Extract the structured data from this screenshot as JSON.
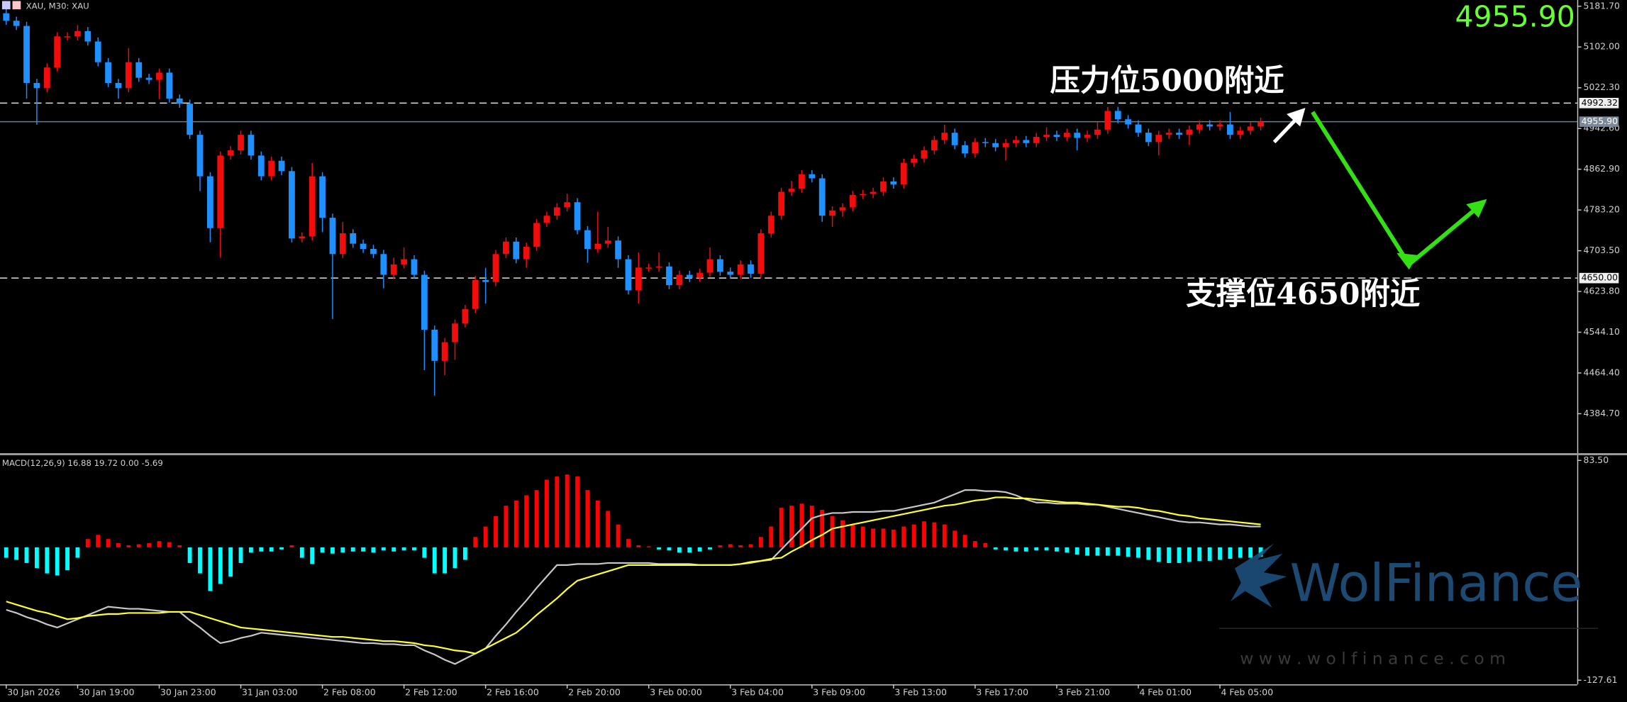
{
  "chart_data": [
    {
      "type": "candlestick",
      "title": "XAU, M30: XAU",
      "categories": [
        "30 Jan 2026",
        null,
        null,
        null,
        null,
        null,
        null,
        "30 Jan 19:00",
        null,
        null,
        null,
        null,
        null,
        null,
        null,
        "30 Jan 23:00",
        null,
        null,
        null,
        null,
        null,
        null,
        null,
        "31 Jan 03:00",
        null,
        null,
        null,
        null,
        null,
        null,
        null,
        "2 Feb 08:00",
        null,
        null,
        null,
        null,
        null,
        null,
        null,
        "2 Feb 12:00",
        null,
        null,
        null,
        null,
        null,
        null,
        null,
        "2 Feb 16:00",
        null,
        null,
        null,
        null,
        null,
        null,
        null,
        "2 Feb 20:00",
        null,
        null,
        null,
        null,
        null,
        null,
        null,
        "3 Feb 00:00",
        null,
        null,
        null,
        null,
        null,
        null,
        null,
        "3 Feb 04:00",
        null,
        null,
        null,
        null,
        null,
        null,
        null,
        "3 Feb 09:00",
        null,
        null,
        null,
        null,
        null,
        null,
        null,
        "3 Feb 13:00",
        null,
        null,
        null,
        null,
        null,
        null,
        null,
        "3 Feb 17:00",
        null,
        null,
        null,
        null,
        null,
        null,
        null,
        "3 Feb 21:00",
        null,
        null,
        null,
        null,
        null,
        null,
        null,
        "4 Feb 01:00",
        null,
        null,
        null,
        null,
        null,
        null,
        null,
        "4 Feb 05:00",
        null,
        null,
        null,
        null
      ],
      "open": [
        5168.0,
        5153.3,
        5143.2,
        5031.6,
        5021.5,
        5062.0,
        5122.9,
        5122.9,
        5133.0,
        5112.7,
        5072.2,
        5031.6,
        5021.5,
        5072.2,
        5041.8,
        5037.7,
        5051.9,
        5001.2,
        4991.1,
        4930.2,
        4849.1,
        4747.7,
        4889.7,
        4899.8,
        4930.2,
        4889.7,
        4849.1,
        4879.5,
        4859.2,
        4727.4,
        4731.5,
        4849.1,
        4768.0,
        4697.0,
        4737.6,
        4717.3,
        4707.1,
        4697.0,
        4656.4,
        4676.7,
        4686.9,
        4656.4,
        4549.0,
        4488.1,
        4524.6,
        4561.1,
        4589.5,
        4646.3,
        4642.3,
        4697.0,
        4721.3,
        4686.9,
        4711.2,
        4757.8,
        4772.0,
        4788.3,
        4798.4,
        4743.7,
        4707.1,
        4717.3,
        4723.4,
        4686.9,
        4626.0,
        4670.6,
        4670.6,
        4672.7,
        4636.2,
        4656.4,
        4650.4,
        4660.5,
        4686.9,
        4662.5,
        4656.4,
        4676.7,
        4658.5,
        4737.6,
        4772.0,
        4818.7,
        4824.8,
        4853.2,
        4845.1,
        4772.0,
        4782.2,
        4788.3,
        4812.6,
        4814.6,
        4818.7,
        4839.0,
        4832.9,
        4875.5,
        4883.6,
        4899.8,
        4920.1,
        4934.3,
        4909.9,
        4893.7,
        4916.0,
        4914.0,
        4905.9,
        4914.0,
        4920.1,
        4914.0,
        4926.2,
        4930.2,
        4926.2,
        4934.3,
        4924.1,
        4930.2,
        4940.4,
        4976.9,
        4960.6,
        4950.5,
        4934.3,
        4916.0,
        4930.2,
        4934.3,
        4930.2,
        4940.4,
        4950.5,
        4946.5,
        4950.5,
        4930.2,
        4938.3,
        4946.5
      ],
      "high": [
        5176.0,
        5161.3,
        5151.2,
        5039.6,
        5070.0,
        5130.9,
        5130.9,
        5145.0,
        5141.0,
        5120.7,
        5080.2,
        5039.6,
        5100.0,
        5080.2,
        5049.8,
        5059.9,
        5059.9,
        5009.2,
        4999.1,
        4938.2,
        4857.1,
        4897.7,
        4907.8,
        4938.2,
        4938.2,
        4897.7,
        4887.5,
        4887.5,
        4867.2,
        4739.5,
        4875.0,
        4857.1,
        4776.0,
        4760.0,
        4745.6,
        4725.3,
        4715.1,
        4705.0,
        4690.0,
        4710.0,
        4694.9,
        4664.4,
        4557.0,
        4532.6,
        4569.1,
        4597.5,
        4654.3,
        4670.0,
        4705.0,
        4729.3,
        4729.3,
        4719.2,
        4765.8,
        4780.0,
        4796.3,
        4815.0,
        4806.4,
        4751.7,
        4780.0,
        4750.0,
        4731.4,
        4694.9,
        4700.0,
        4678.6,
        4700.0,
        4680.7,
        4664.4,
        4664.4,
        4668.5,
        4710.0,
        4694.9,
        4670.5,
        4684.7,
        4684.7,
        4745.6,
        4780.0,
        4826.7,
        4840.0,
        4861.2,
        4861.2,
        4853.1,
        4790.2,
        4796.3,
        4820.6,
        4822.6,
        4826.7,
        4847.0,
        4847.0,
        4883.5,
        4891.6,
        4907.8,
        4928.1,
        4950.0,
        4942.3,
        4917.9,
        4924.0,
        4924.0,
        4922.0,
        4922.0,
        4928.1,
        4928.1,
        4934.2,
        4945.0,
        4938.2,
        4942.3,
        4942.3,
        4938.2,
        4955.0,
        4984.9,
        4984.9,
        4968.6,
        4958.5,
        4942.3,
        4938.2,
        4942.3,
        4942.3,
        4948.4,
        4958.5,
        4958.5,
        4958.5,
        4975.0,
        4946.3,
        4954.5,
        4963.9
      ],
      "low": [
        5145.3,
        5135.2,
        5001.0,
        4950.0,
        5013.5,
        5054.0,
        5114.9,
        5114.9,
        5104.7,
        5064.2,
        5023.6,
        5001.0,
        5013.5,
        5033.8,
        5029.7,
        5000.0,
        4993.2,
        4983.1,
        4922.2,
        4820.0,
        4720.0,
        4690.0,
        4881.7,
        4891.8,
        4881.7,
        4841.1,
        4841.1,
        4851.2,
        4719.4,
        4719.4,
        4723.5,
        4740.0,
        4570.0,
        4689.0,
        4709.3,
        4699.1,
        4689.0,
        4630.0,
        4648.4,
        4668.7,
        4648.4,
        4470.0,
        4420.0,
        4460.0,
        4490.0,
        4553.1,
        4581.5,
        4600.0,
        4634.3,
        4689.0,
        4678.9,
        4670.0,
        4703.2,
        4749.8,
        4764.0,
        4780.3,
        4735.7,
        4680.0,
        4699.1,
        4709.3,
        4670.0,
        4618.0,
        4600.0,
        4662.6,
        4662.6,
        4628.2,
        4628.2,
        4642.4,
        4642.4,
        4652.5,
        4654.5,
        4648.4,
        4648.4,
        4650.5,
        4650.5,
        4729.6,
        4764.0,
        4810.7,
        4816.8,
        4837.1,
        4760.0,
        4750.0,
        4770.0,
        4780.3,
        4804.6,
        4806.6,
        4810.7,
        4824.9,
        4824.9,
        4867.5,
        4875.6,
        4891.8,
        4912.1,
        4901.9,
        4885.7,
        4885.7,
        4906.0,
        4897.9,
        4880.0,
        4906.0,
        4906.0,
        4906.0,
        4918.2,
        4918.2,
        4918.2,
        4900.0,
        4916.1,
        4922.2,
        4932.4,
        4952.6,
        4942.5,
        4926.3,
        4908.0,
        4890.0,
        4922.2,
        4922.2,
        4910.0,
        4932.4,
        4938.5,
        4938.5,
        4922.2,
        4922.2,
        4930.3,
        4938.5
      ],
      "close": [
        5153.3,
        5143.2,
        5031.6,
        5021.5,
        5062.0,
        5122.9,
        5122.9,
        5133.0,
        5112.7,
        5072.2,
        5031.6,
        5021.5,
        5072.2,
        5041.8,
        5037.7,
        5051.9,
        5001.2,
        4991.1,
        4930.2,
        4849.1,
        4747.7,
        4889.7,
        4899.8,
        4930.2,
        4889.7,
        4849.1,
        4879.5,
        4859.2,
        4727.4,
        4731.5,
        4849.1,
        4768.0,
        4697.0,
        4737.6,
        4717.3,
        4707.1,
        4697.0,
        4656.4,
        4676.7,
        4686.9,
        4656.4,
        4549.0,
        4488.1,
        4524.6,
        4561.1,
        4589.5,
        4646.3,
        4642.3,
        4697.0,
        4721.3,
        4686.9,
        4711.2,
        4757.8,
        4772.0,
        4788.3,
        4798.4,
        4743.7,
        4707.1,
        4717.3,
        4723.4,
        4686.9,
        4626.0,
        4670.6,
        4670.6,
        4672.7,
        4636.2,
        4656.4,
        4650.4,
        4660.5,
        4686.9,
        4662.5,
        4656.4,
        4676.7,
        4658.5,
        4737.6,
        4772.0,
        4818.7,
        4824.8,
        4853.2,
        4845.1,
        4772.0,
        4782.2,
        4788.3,
        4812.6,
        4814.6,
        4818.7,
        4839.0,
        4832.9,
        4875.5,
        4883.6,
        4899.8,
        4920.1,
        4934.3,
        4909.9,
        4893.7,
        4916.0,
        4914.0,
        4905.9,
        4914.0,
        4920.1,
        4914.0,
        4926.2,
        4930.2,
        4926.2,
        4934.3,
        4924.1,
        4930.2,
        4940.4,
        4976.9,
        4960.6,
        4950.5,
        4934.3,
        4916.0,
        4930.2,
        4934.3,
        4930.2,
        4940.4,
        4950.5,
        4946.5,
        4950.5,
        4930.2,
        4938.3,
        4946.5,
        4955.9
      ],
      "up_color": "#f20c0c",
      "down_color": "#1e90ff",
      "ylim": [
        4307.6,
        5193.9
      ],
      "yticks": [
        {
          "value": 5181.7,
          "label": "5181.70"
        },
        {
          "value": 5102.0,
          "label": "5102.00"
        },
        {
          "value": 5022.3,
          "label": "5022.30"
        },
        {
          "value": 4942.6,
          "label": "4942.60"
        },
        {
          "value": 4862.9,
          "label": "4862.90"
        },
        {
          "value": 4783.2,
          "label": "4783.20"
        },
        {
          "value": 4703.5,
          "label": "4703.50"
        },
        {
          "value": 4623.8,
          "label": "4623.80"
        },
        {
          "value": 4544.1,
          "label": "4544.10"
        },
        {
          "value": 4464.4,
          "label": "4464.40"
        },
        {
          "value": 4384.7,
          "label": "4384.70"
        }
      ],
      "hlines": [
        {
          "value": 4992.32,
          "label": "4992.32"
        },
        {
          "value": 4955.9,
          "label": "4955.90"
        },
        {
          "value": 4650.0,
          "label": "4650.00"
        }
      ],
      "hline_styles": [
        "dashed",
        "solid",
        "dashed"
      ],
      "current_price": {
        "value": 4955.9,
        "label": "4955.90"
      },
      "current_price_color": "#66ff33",
      "annotations": [
        "压力位5000附近",
        "支撑位4650附近"
      ]
    },
    {
      "type": "macd",
      "title": "MACD(12,26,9) 16.88 19.72 0.00 -5.69",
      "ylim": [
        -131.6,
        87.5
      ],
      "yticks": [
        {
          "value": 83.5,
          "label": "83.50"
        },
        {
          "value": -127.61,
          "label": "-127.61"
        }
      ],
      "histogram": {
        "up_color": "#ff0000",
        "down_color": "#00ffff",
        "values": [
          -10,
          -12,
          -15,
          -20,
          -25,
          -27,
          -22,
          -10,
          8,
          12,
          8,
          4,
          2,
          3,
          4,
          6,
          5,
          2,
          -15,
          -25,
          -42,
          -35,
          -28,
          -15,
          -5,
          -4,
          -4,
          -2,
          2,
          -10,
          -16,
          -5,
          -6,
          -5,
          -4,
          -4,
          -5,
          -3,
          -4,
          -3,
          -3,
          -10,
          -25,
          -25,
          -20,
          -12,
          10,
          20,
          30,
          40,
          45,
          50,
          55,
          65,
          68,
          70,
          68,
          55,
          45,
          35,
          22,
          8,
          2,
          1,
          -2,
          -3,
          -5,
          -5,
          -4,
          -2,
          2,
          3,
          2,
          3,
          10,
          20,
          38,
          40,
          42,
          40,
          36,
          30,
          26,
          22,
          20,
          18,
          18,
          17,
          20,
          22,
          25,
          24,
          22,
          16,
          12,
          6,
          4,
          -2,
          -3,
          -4,
          -4,
          -3,
          -3,
          -4,
          -5,
          -7,
          -8,
          -8,
          -8,
          -8,
          -9,
          -10,
          -12,
          -14,
          -15,
          -15,
          -14,
          -13,
          -13,
          -12,
          -11,
          -10,
          -10,
          -9
        ]
      },
      "series": [
        {
          "color": "#c8c8c8",
          "values": [
            -60,
            -63,
            -67,
            -70,
            -74,
            -77,
            -73,
            -69,
            -65,
            -61,
            -57,
            -58,
            -59,
            -59,
            -60,
            -61,
            -62,
            -62,
            -70,
            -77,
            -85,
            -92,
            -90,
            -87,
            -85,
            -82,
            -83,
            -84,
            -85,
            -86,
            -87,
            -88,
            -89,
            -90,
            -91,
            -92,
            -92,
            -93,
            -93,
            -94,
            -94,
            -99,
            -103,
            -108,
            -112,
            -107,
            -102,
            -97,
            -85,
            -74,
            -62,
            -51,
            -39,
            -28,
            -17,
            -17,
            -16,
            -16,
            -16,
            -15,
            -15,
            -15,
            -15,
            -15,
            -16,
            -16,
            -16,
            -16,
            -17,
            -17,
            -17,
            -17,
            -16,
            -15,
            -13,
            -12,
            -2,
            8,
            18,
            28,
            31,
            33,
            33,
            34,
            34,
            34,
            35,
            35,
            37,
            39,
            41,
            43,
            47,
            51,
            55,
            55,
            54,
            54,
            53,
            50,
            46,
            43,
            43,
            42,
            42,
            42,
            41,
            41,
            39,
            37,
            35,
            33,
            31,
            29,
            27,
            25,
            24,
            24,
            23,
            22,
            22,
            21,
            20,
            20
          ]
        },
        {
          "color": "#ffff33",
          "values": [
            -52,
            -55,
            -58,
            -61,
            -63,
            -66,
            -69,
            -68,
            -66,
            -65,
            -64,
            -64,
            -63,
            -63,
            -63,
            -63,
            -62,
            -62,
            -62,
            -65,
            -68,
            -71,
            -74,
            -77,
            -78,
            -79,
            -80,
            -81,
            -82,
            -83,
            -84,
            -85,
            -86,
            -86,
            -87,
            -88,
            -89,
            -90,
            -90,
            -91,
            -92,
            -94,
            -95,
            -97,
            -99,
            -100,
            -102,
            -97,
            -92,
            -87,
            -82,
            -74,
            -65,
            -57,
            -49,
            -40,
            -32,
            -29,
            -26,
            -23,
            -20,
            -17,
            -17,
            -17,
            -17,
            -17,
            -17,
            -17,
            -17,
            -17,
            -17,
            -17,
            -16,
            -14,
            -13,
            -11,
            -10,
            -4,
            1,
            7,
            12,
            18,
            20,
            22,
            24,
            26,
            28,
            30,
            32,
            34,
            36,
            38,
            40,
            41,
            43,
            45,
            46,
            48,
            48,
            47,
            47,
            46,
            45,
            44,
            43,
            43,
            42,
            41,
            40,
            39,
            39,
            38,
            36,
            35,
            33,
            31,
            30,
            28,
            27,
            26,
            25,
            24,
            23,
            22
          ]
        }
      ]
    }
  ],
  "watermark": {
    "brand": "WolFinance",
    "url": "w w w . w o l f i n a n c e . c o m"
  }
}
